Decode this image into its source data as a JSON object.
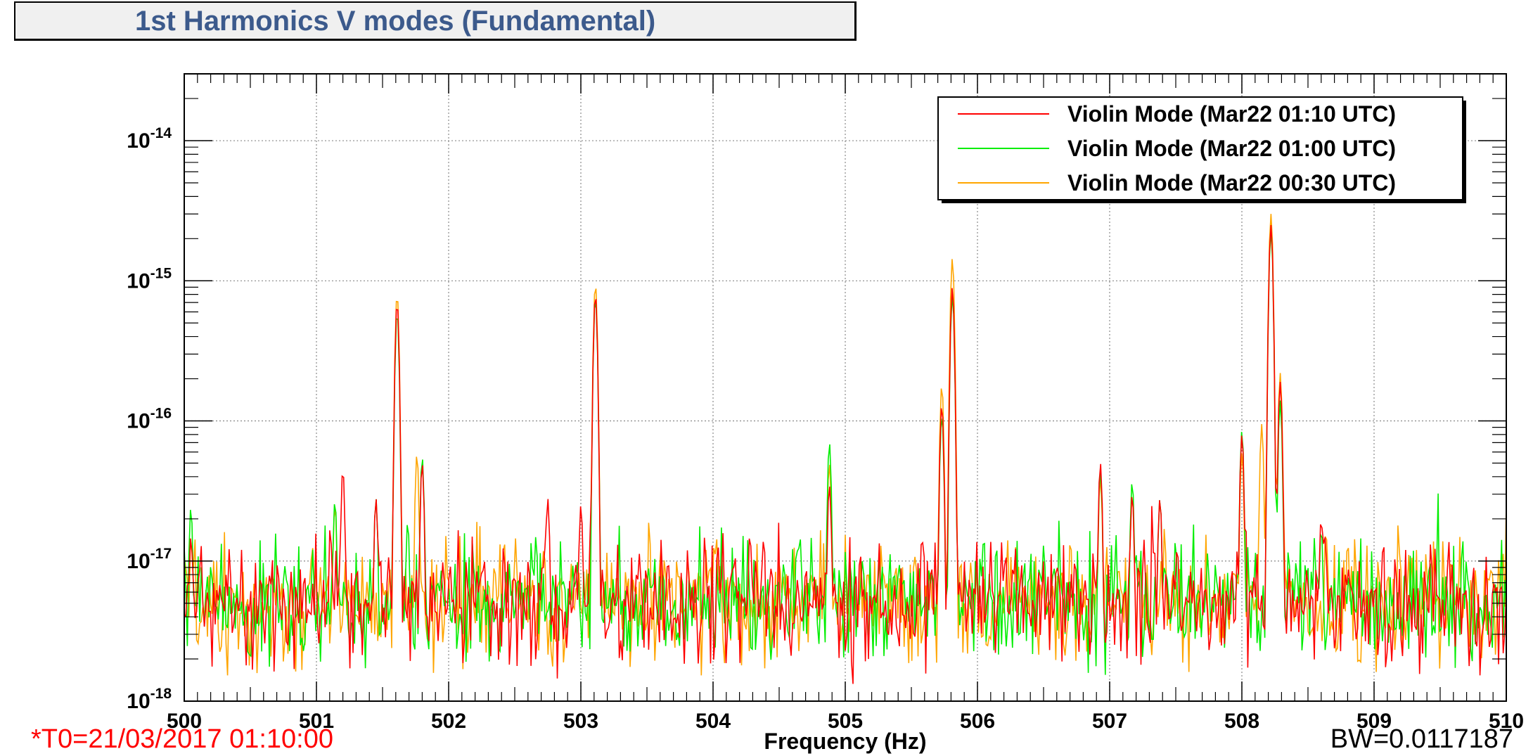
{
  "header": {
    "title": "1st Harmonics V modes (Fundamental)"
  },
  "footer": {
    "t0": "*T0=21/03/2017 01:10:00",
    "bw": "BW=0.0117187"
  },
  "chart_data": {
    "type": "line",
    "title": "1st Harmonics V modes (Fundamental)",
    "xlabel": "Frequency (Hz)",
    "ylabel": "",
    "xlim": [
      500,
      510
    ],
    "ylim": [
      1e-18,
      3e-14
    ],
    "yscale": "log",
    "grid": true,
    "legend_position": "top-right",
    "x_ticks": [
      {
        "value": 500,
        "label": "500"
      },
      {
        "value": 501,
        "label": "501"
      },
      {
        "value": 502,
        "label": "502"
      },
      {
        "value": 503,
        "label": "503"
      },
      {
        "value": 504,
        "label": "504"
      },
      {
        "value": 505,
        "label": "505"
      },
      {
        "value": 506,
        "label": "506"
      },
      {
        "value": 507,
        "label": "507"
      },
      {
        "value": 508,
        "label": "508"
      },
      {
        "value": 509,
        "label": "509"
      },
      {
        "value": 510,
        "label": "510"
      }
    ],
    "y_ticks": [
      {
        "exp": -18,
        "base": "10",
        "sup": "-18"
      },
      {
        "exp": -17,
        "base": "10",
        "sup": "-17"
      },
      {
        "exp": -16,
        "base": "10",
        "sup": "-16"
      },
      {
        "exp": -15,
        "base": "10",
        "sup": "-15"
      },
      {
        "exp": -14,
        "base": "10",
        "sup": "-14"
      }
    ],
    "noise_floor": 5e-18,
    "series": [
      {
        "name": "Violin Mode (Mar22 01:10 UTC)",
        "color": "#ff0000",
        "seed": 11,
        "peaks": [
          [
            500.05,
            1.5e-17
          ],
          [
            501.2,
            4.5e-17
          ],
          [
            501.45,
            2.8e-17
          ],
          [
            501.61,
            7e-16
          ],
          [
            501.8,
            5e-17
          ],
          [
            502.75,
            2.8e-17
          ],
          [
            503.0,
            2.5e-17
          ],
          [
            503.11,
            8e-16
          ],
          [
            504.88,
            3.5e-17
          ],
          [
            505.58,
            1.5e-17
          ],
          [
            505.73,
            1.3e-16
          ],
          [
            505.81,
            9e-16
          ],
          [
            506.93,
            5e-17
          ],
          [
            507.17,
            3e-17
          ],
          [
            507.38,
            2.8e-17
          ],
          [
            508.0,
            8e-17
          ],
          [
            508.22,
            2.5e-15
          ],
          [
            508.29,
            1.9e-16
          ],
          [
            508.6,
            2e-17
          ]
        ]
      },
      {
        "name": "Violin Mode (Mar22 01:00 UTC)",
        "color": "#00ee00",
        "seed": 23,
        "peaks": [
          [
            500.05,
            2.4e-17
          ],
          [
            501.14,
            2.7e-17
          ],
          [
            501.45,
            2.8e-17
          ],
          [
            501.61,
            6e-16
          ],
          [
            501.69,
            1.9e-17
          ],
          [
            501.8,
            5.5e-17
          ],
          [
            502.66,
            1.5e-17
          ],
          [
            503.11,
            7.5e-16
          ],
          [
            504.88,
            7e-17
          ],
          [
            505.73,
            1.1e-16
          ],
          [
            505.81,
            8e-16
          ],
          [
            506.93,
            4.5e-17
          ],
          [
            507.17,
            3.7e-17
          ],
          [
            507.38,
            2.8e-17
          ],
          [
            508.0,
            8.5e-17
          ],
          [
            508.22,
            2.3e-15
          ],
          [
            508.29,
            1.4e-16
          ],
          [
            508.6,
            1.7e-17
          ]
        ]
      },
      {
        "name": "Violin Mode (Mar22 00:30 UTC)",
        "color": "#ffa500",
        "seed": 37,
        "peaks": [
          [
            501.14,
            2.5e-17
          ],
          [
            501.61,
            8e-16
          ],
          [
            501.76,
            5.8e-17
          ],
          [
            503.11,
            9.5e-16
          ],
          [
            504.88,
            5e-17
          ],
          [
            505.73,
            1.8e-16
          ],
          [
            505.81,
            1.45e-15
          ],
          [
            506.93,
            4e-17
          ],
          [
            507.17,
            3e-17
          ],
          [
            508.0,
            6e-17
          ],
          [
            508.15,
            9.5e-17
          ],
          [
            508.22,
            3e-15
          ],
          [
            508.29,
            2.2e-16
          ]
        ]
      }
    ]
  }
}
